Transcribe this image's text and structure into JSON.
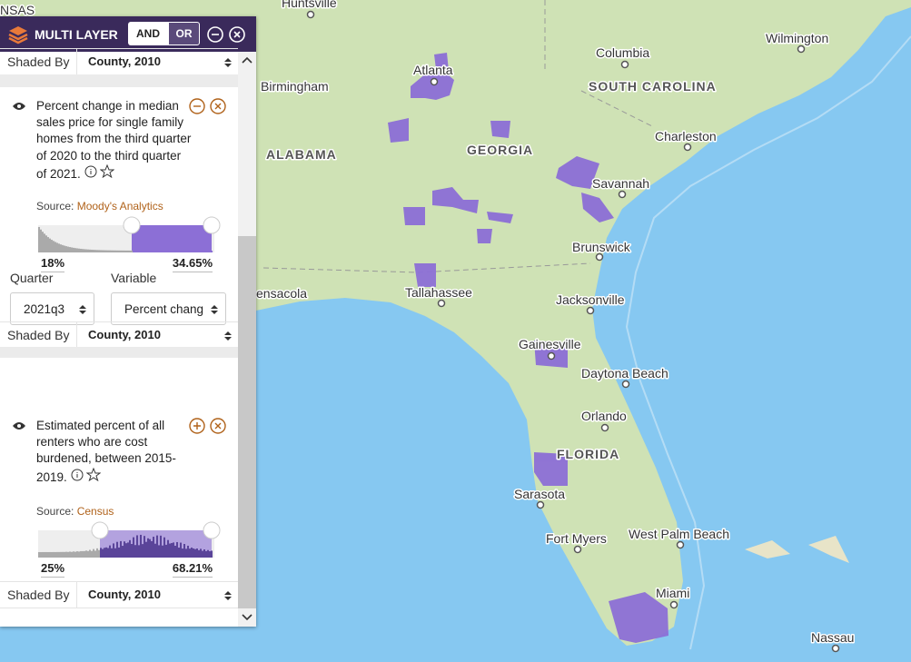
{
  "panel": {
    "title": "MULTI LAYER",
    "and_label": "AND",
    "or_label": "OR",
    "top_row": {
      "label": "Shaded By",
      "value": "County, 2010"
    },
    "layers": [
      {
        "description": "Percent change in median sales price for single family homes from the third quarter of 2020 to the third quarter of 2021.",
        "source_label": "Source:",
        "source": "Moody's Analytics",
        "range_min": "18%",
        "range_max": "34.65%",
        "selects": [
          {
            "label": "Quarter",
            "value": "2021q3"
          },
          {
            "label": "Variable",
            "value": "Percent chang"
          }
        ],
        "shaded_by": {
          "label": "Shaded By",
          "value": "County, 2010"
        }
      },
      {
        "description": "Estimated percent of all renters who are cost burdened, between 2015-2019.",
        "source_label": "Source:",
        "source": "Census",
        "range_min": "25%",
        "range_max": "68.21%",
        "shaded_by": {
          "label": "Shaded By",
          "value": "County, 2010"
        }
      }
    ]
  },
  "map": {
    "labels": [
      "NSAS",
      "Huntsville",
      "Atlanta",
      "Columbia",
      "Wilmington",
      "Birmingham",
      "SOUTH CAROLINA",
      "GEORGIA",
      "ALABAMA",
      "Charleston",
      "Savannah",
      "Brunswick",
      "ensacola",
      "Tallahassee",
      "Jacksonville",
      "Gainesville",
      "Daytona Beach",
      "Orlando",
      "FLORIDA",
      "Sarasota",
      "Fort Myers",
      "West Palm Beach",
      "Miami",
      "Nassau"
    ]
  }
}
